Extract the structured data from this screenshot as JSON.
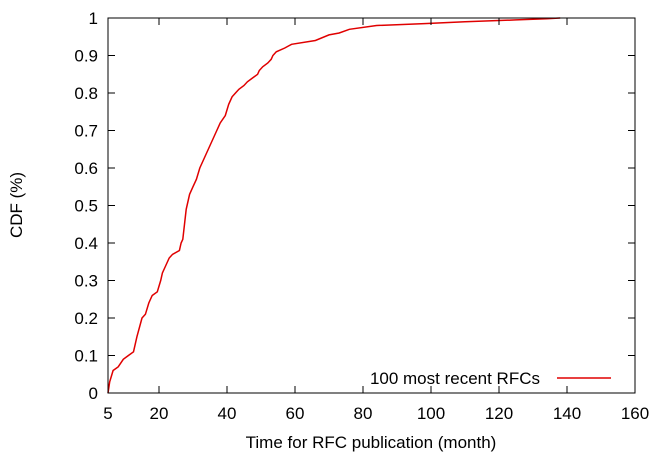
{
  "chart_data": {
    "type": "line",
    "title": "",
    "xlabel": "Time for RFC publication (month)",
    "ylabel": "CDF (%)",
    "xlim": [
      5,
      160
    ],
    "ylim": [
      0,
      1
    ],
    "xticks": [
      5,
      20,
      40,
      60,
      80,
      100,
      120,
      140,
      160
    ],
    "yticks": [
      0,
      0.1,
      0.2,
      0.3,
      0.4,
      0.5,
      0.6,
      0.7,
      0.8,
      0.9,
      1
    ],
    "xtick_labels": [
      "5",
      "20",
      "40",
      "60",
      "80",
      "100",
      "120",
      "140",
      "160"
    ],
    "ytick_labels": [
      "0",
      "0.1",
      "0.2",
      "0.3",
      "0.4",
      "0.5",
      "0.6",
      "0.7",
      "0.8",
      "0.9",
      "1"
    ],
    "grid": false,
    "legend_position": "bottom-right",
    "series": [
      {
        "name": "100 most recent RFCs",
        "color": "#e00000",
        "points": [
          [
            5,
            0
          ],
          [
            5.5,
            0.03
          ],
          [
            6.5,
            0.06
          ],
          [
            8,
            0.07
          ],
          [
            9.5,
            0.09
          ],
          [
            11,
            0.1
          ],
          [
            12.5,
            0.11
          ],
          [
            13.5,
            0.15
          ],
          [
            15,
            0.2
          ],
          [
            16,
            0.21
          ],
          [
            17,
            0.24
          ],
          [
            18,
            0.26
          ],
          [
            19.5,
            0.27
          ],
          [
            20.5,
            0.3
          ],
          [
            21,
            0.32
          ],
          [
            22,
            0.34
          ],
          [
            23,
            0.36
          ],
          [
            24,
            0.37
          ],
          [
            26,
            0.38
          ],
          [
            26.5,
            0.4
          ],
          [
            27,
            0.41
          ],
          [
            27.5,
            0.45
          ],
          [
            28,
            0.49
          ],
          [
            29,
            0.53
          ],
          [
            30,
            0.55
          ],
          [
            31,
            0.57
          ],
          [
            32,
            0.6
          ],
          [
            33,
            0.62
          ],
          [
            34,
            0.64
          ],
          [
            35,
            0.66
          ],
          [
            36,
            0.68
          ],
          [
            37,
            0.7
          ],
          [
            38,
            0.72
          ],
          [
            39.5,
            0.74
          ],
          [
            40.5,
            0.77
          ],
          [
            41.5,
            0.79
          ],
          [
            42.5,
            0.8
          ],
          [
            43.5,
            0.81
          ],
          [
            45,
            0.82
          ],
          [
            46,
            0.83
          ],
          [
            47.5,
            0.84
          ],
          [
            49,
            0.85
          ],
          [
            49.5,
            0.86
          ],
          [
            50.5,
            0.87
          ],
          [
            52,
            0.88
          ],
          [
            53,
            0.89
          ],
          [
            53.5,
            0.9
          ],
          [
            54.5,
            0.91
          ],
          [
            57,
            0.92
          ],
          [
            58,
            0.925
          ],
          [
            59,
            0.93
          ],
          [
            66,
            0.94
          ],
          [
            70,
            0.955
          ],
          [
            73,
            0.96
          ],
          [
            76,
            0.97
          ],
          [
            84,
            0.98
          ],
          [
            98,
            0.985
          ],
          [
            110,
            0.99
          ],
          [
            125,
            0.995
          ],
          [
            134,
            0.998
          ],
          [
            138,
            1.0
          ]
        ]
      }
    ]
  }
}
